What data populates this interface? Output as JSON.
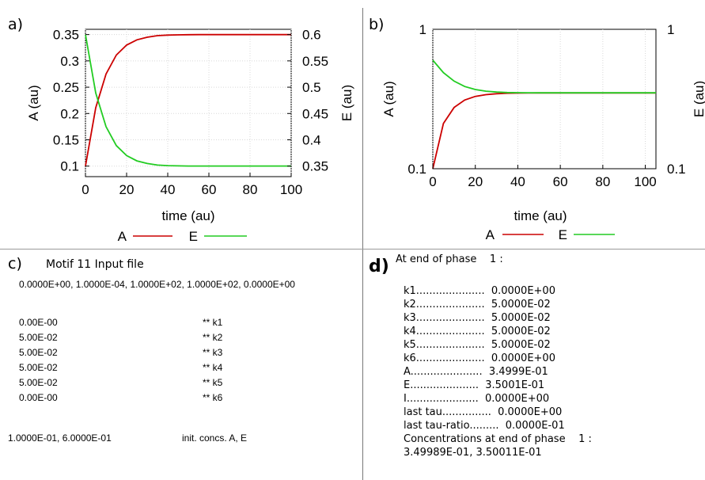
{
  "chart_data": [
    {
      "panel": "a)",
      "type": "line",
      "xlabel": "time (au)",
      "ylabel": "A (au)",
      "y2label": "E (au)",
      "xlim": [
        0,
        100
      ],
      "ylim": [
        0.08,
        0.36
      ],
      "y2lim": [
        0.33,
        0.61
      ],
      "xticks": [
        "0",
        "20",
        "40",
        "60",
        "80",
        "100"
      ],
      "yticks": [
        "0.35",
        "0.3",
        "0.25",
        "0.2",
        "0.15",
        "0.1"
      ],
      "y2ticks": [
        "0.6",
        "0.55",
        "0.5",
        "0.45",
        "0.4",
        "0.35"
      ],
      "legend_placement": "bottom",
      "series": [
        {
          "name": "A",
          "color": "#cc0000",
          "axis": "left",
          "x": [
            0,
            5,
            10,
            15,
            20,
            25,
            30,
            35,
            40,
            45,
            50,
            55,
            60,
            65,
            70,
            75,
            80,
            85,
            90,
            95,
            100
          ],
          "values": [
            0.1,
            0.211,
            0.275,
            0.311,
            0.33,
            0.34,
            0.345,
            0.348,
            0.349,
            0.3495,
            0.3498,
            0.3499,
            0.3499,
            0.3499,
            0.3499,
            0.3499,
            0.3499,
            0.3499,
            0.3499,
            0.3499,
            0.3499
          ]
        },
        {
          "name": "E",
          "color": "#22cc22",
          "axis": "right",
          "x": [
            0,
            5,
            10,
            15,
            20,
            25,
            30,
            35,
            40,
            45,
            50,
            55,
            60,
            65,
            70,
            75,
            80,
            85,
            90,
            95,
            100
          ],
          "values": [
            0.6,
            0.489,
            0.425,
            0.389,
            0.37,
            0.36,
            0.355,
            0.352,
            0.351,
            0.3505,
            0.3502,
            0.3501,
            0.3501,
            0.3501,
            0.3501,
            0.3501,
            0.3501,
            0.3501,
            0.3501,
            0.3501,
            0.3501
          ]
        }
      ]
    },
    {
      "panel": "b)",
      "type": "line",
      "xlabel": "time (au)",
      "ylabel": "A (au)",
      "y2label": "E (au)",
      "yscale": "log",
      "xlim": [
        0,
        105
      ],
      "ylim": [
        0.1,
        1
      ],
      "y2lim": [
        0.1,
        1
      ],
      "xticks": [
        "0",
        "20",
        "40",
        "60",
        "80",
        "100"
      ],
      "yticks": [
        "1",
        "0.1"
      ],
      "y2ticks": [
        "1",
        "0.1"
      ],
      "legend_placement": "bottom",
      "series": [
        {
          "name": "A",
          "color": "#cc0000",
          "axis": "left",
          "x": [
            0,
            5,
            10,
            15,
            20,
            25,
            30,
            35,
            40,
            45,
            50,
            55,
            60,
            65,
            70,
            75,
            80,
            85,
            90,
            95,
            100,
            105
          ],
          "values": [
            0.1,
            0.211,
            0.275,
            0.311,
            0.33,
            0.34,
            0.345,
            0.348,
            0.349,
            0.3495,
            0.3498,
            0.3499,
            0.3499,
            0.3499,
            0.3499,
            0.3499,
            0.3499,
            0.3499,
            0.3499,
            0.3499,
            0.3499,
            0.3499
          ]
        },
        {
          "name": "E",
          "color": "#22cc22",
          "axis": "right",
          "x": [
            0,
            5,
            10,
            15,
            20,
            25,
            30,
            35,
            40,
            45,
            50,
            55,
            60,
            65,
            70,
            75,
            80,
            85,
            90,
            95,
            100,
            105
          ],
          "values": [
            0.6,
            0.489,
            0.425,
            0.389,
            0.37,
            0.36,
            0.355,
            0.352,
            0.351,
            0.3505,
            0.3502,
            0.3501,
            0.3501,
            0.3501,
            0.3501,
            0.3501,
            0.3501,
            0.3501,
            0.3501,
            0.3501,
            0.3501,
            0.3501
          ]
        }
      ]
    }
  ],
  "panel_c": {
    "label": "c)",
    "title": "Motif 11 Input file",
    "header_line": "0.0000E+00, 1.0000E-04, 1.0000E+02, 1.0000E+02, 0.0000E+00",
    "rates": [
      {
        "value": "0.00E-00",
        "tag": "** k1"
      },
      {
        "value": "5.00E-02",
        "tag": "** k2"
      },
      {
        "value": "5.00E-02",
        "tag": "** k3"
      },
      {
        "value": "5.00E-02",
        "tag": "** k4"
      },
      {
        "value": "5.00E-02",
        "tag": "** k5"
      },
      {
        "value": "0.00E-00",
        "tag": "** k6"
      }
    ],
    "init_values": "1.0000E-01, 6.0000E-01",
    "init_label": "init. concs. A, E"
  },
  "panel_d": {
    "label": "d)",
    "title": "At end of phase    1 :",
    "lines": [
      "k1.....................  0.0000E+00",
      "k2.....................  5.0000E-02",
      "k3.....................  5.0000E-02",
      "k4.....................  5.0000E-02",
      "k5.....................  5.0000E-02",
      "k6.....................  0.0000E+00",
      "A......................  3.4999E-01",
      "E.....................  3.5001E-01",
      "I......................  0.0000E+00",
      "last tau...............  0.0000E+00",
      "last tau-ratio.........  0.0000E-01",
      "Concentrations at end of phase    1 :",
      "3.49989E-01, 3.50011E-01"
    ]
  }
}
